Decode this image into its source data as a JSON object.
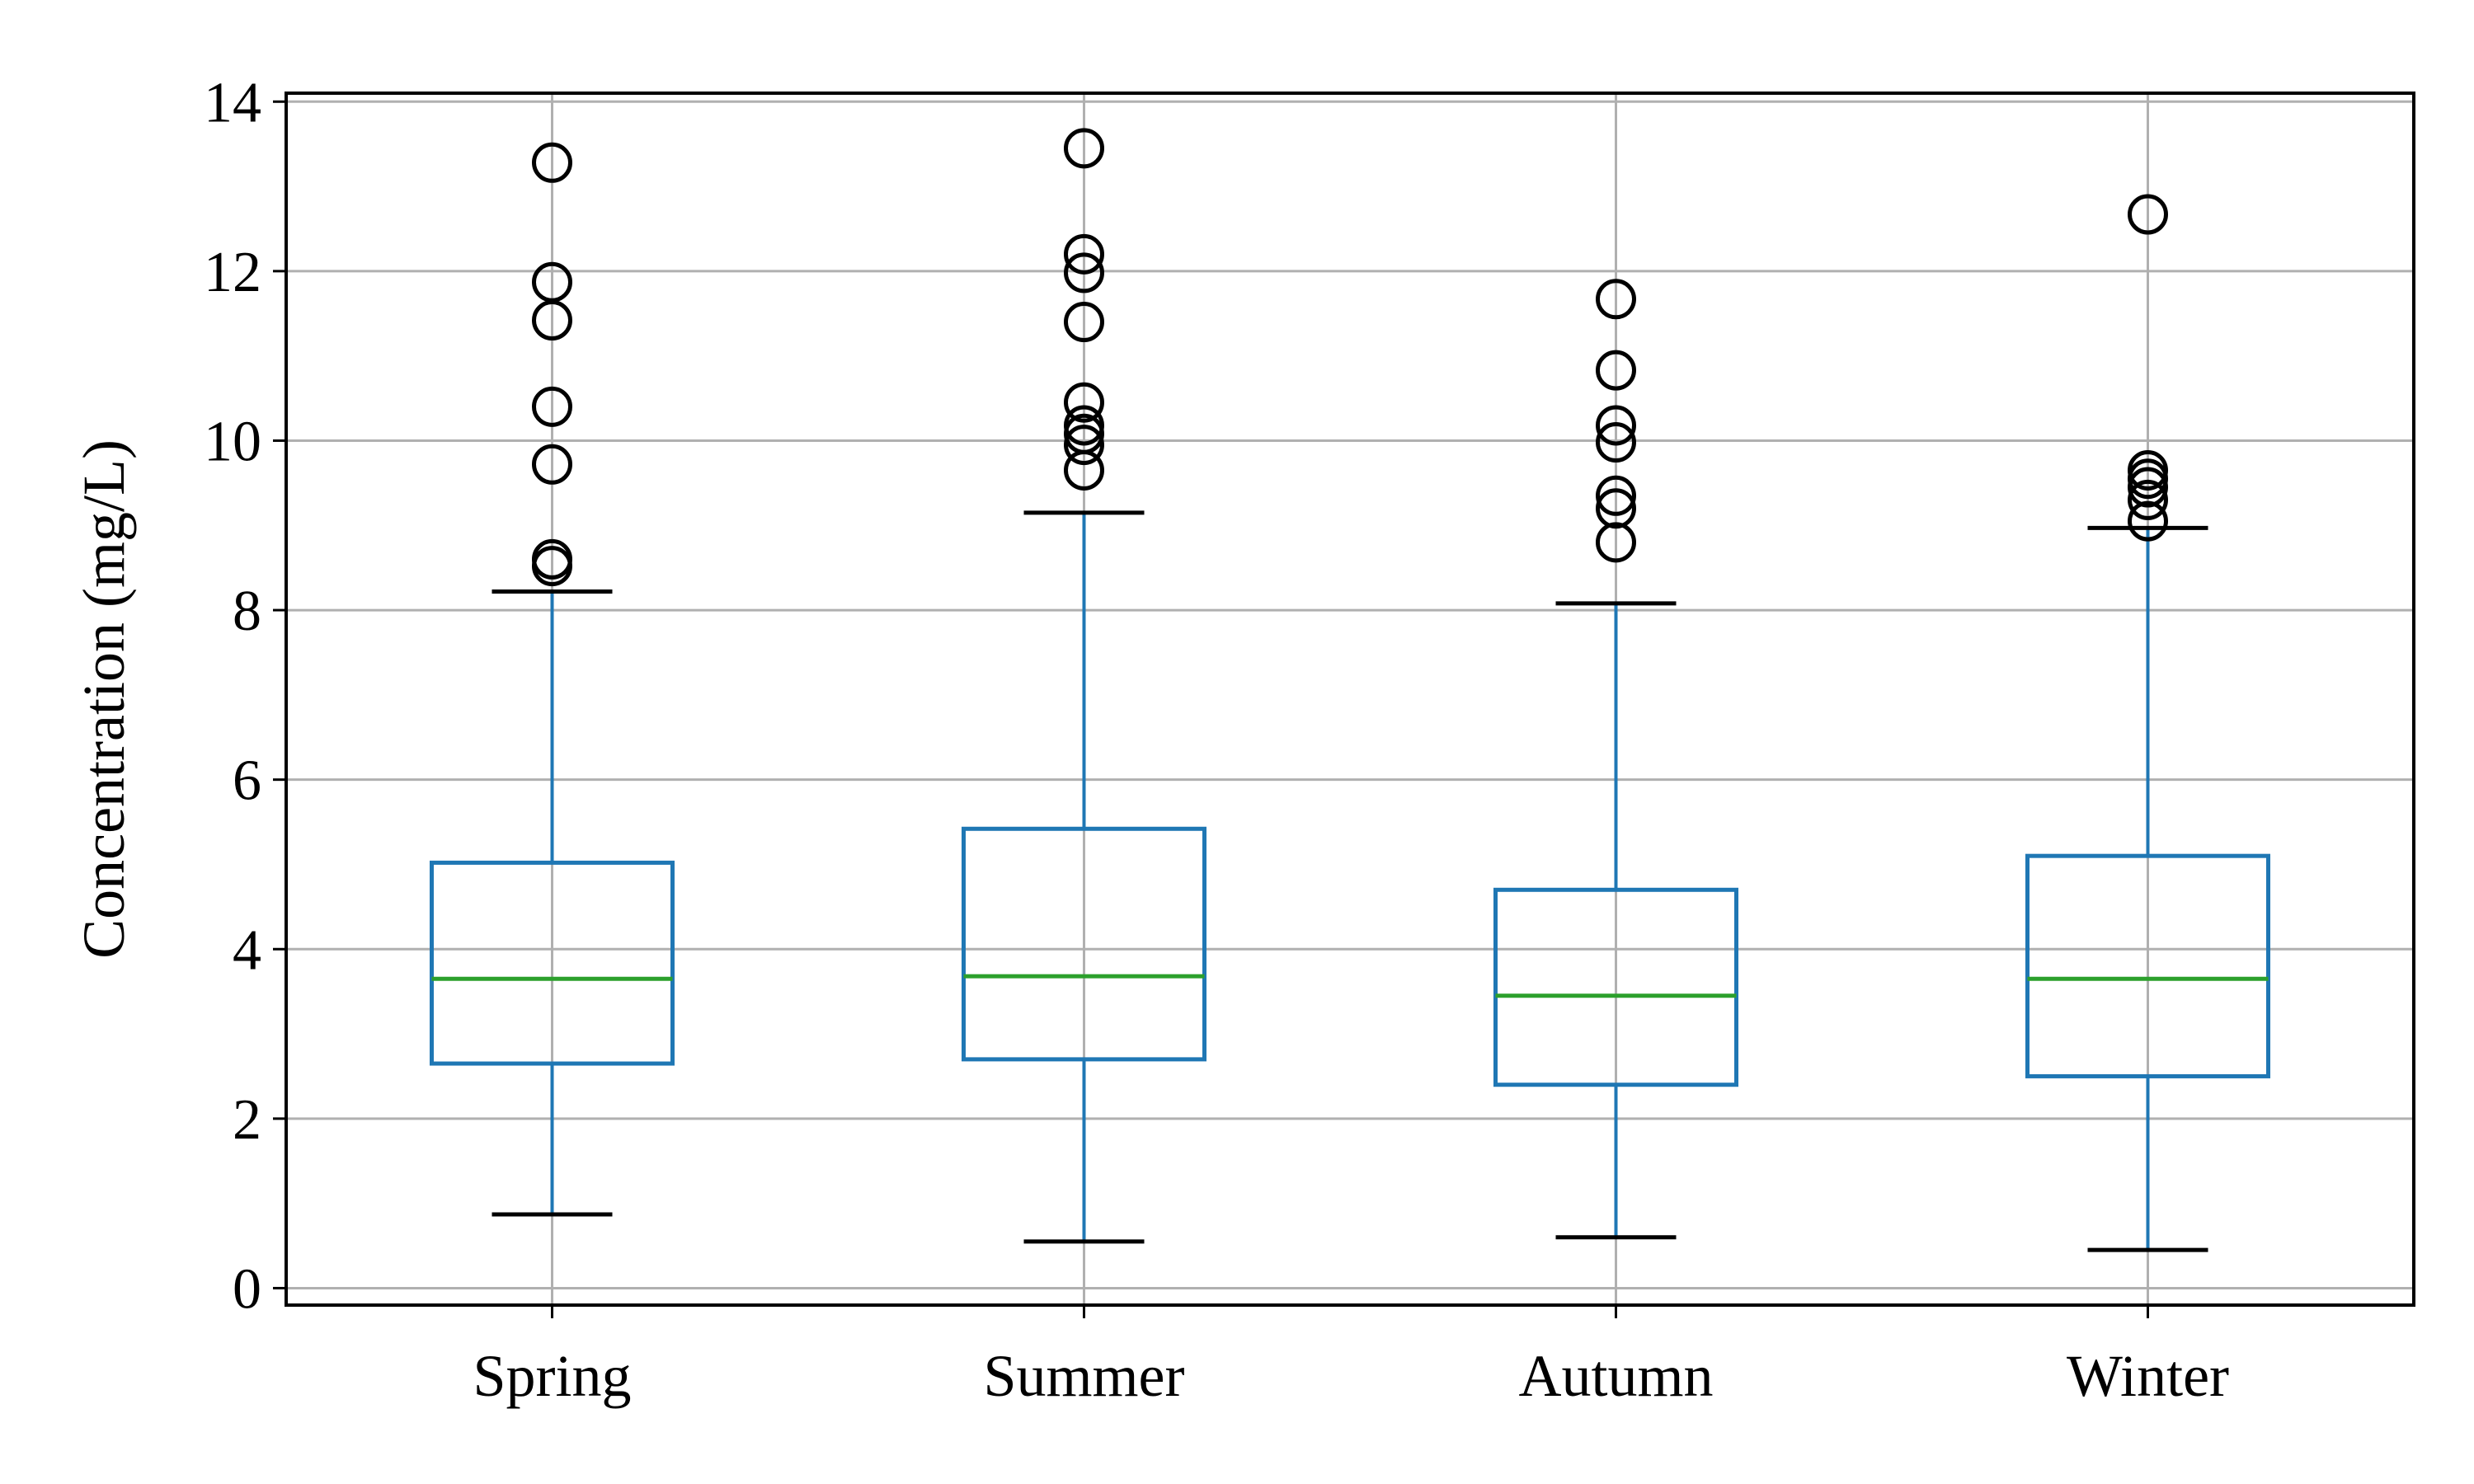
{
  "chart_data": {
    "type": "box",
    "title": "",
    "xlabel": "",
    "ylabel": "Concentration (mg/L)",
    "ylim": [
      -0.2,
      14.1
    ],
    "yticks": [
      0,
      2,
      4,
      6,
      8,
      10,
      12,
      14
    ],
    "grid": true,
    "categories": [
      "Spring",
      "Summer",
      "Autumn",
      "Winter"
    ],
    "boxes": [
      {
        "category": "Spring",
        "whisker_low": 0.87,
        "q1": 2.65,
        "median": 3.65,
        "q3": 5.02,
        "whisker_high": 8.22,
        "outliers": [
          8.52,
          8.6,
          9.72,
          10.4,
          11.42,
          11.87,
          13.28
        ]
      },
      {
        "category": "Summer",
        "whisker_low": 0.55,
        "q1": 2.7,
        "median": 3.68,
        "q3": 5.42,
        "whisker_high": 9.15,
        "outliers": [
          9.65,
          9.95,
          10.08,
          10.18,
          10.45,
          11.4,
          11.98,
          12.2,
          13.45
        ]
      },
      {
        "category": "Autumn",
        "whisker_low": 0.6,
        "q1": 2.4,
        "median": 3.45,
        "q3": 4.7,
        "whisker_high": 8.08,
        "outliers": [
          8.8,
          9.2,
          9.35,
          9.98,
          10.18,
          10.83,
          11.67
        ]
      },
      {
        "category": "Winter",
        "whisker_low": 0.45,
        "q1": 2.5,
        "median": 3.65,
        "q3": 5.1,
        "whisker_high": 8.97,
        "outliers": [
          9.05,
          9.3,
          9.45,
          9.55,
          9.65,
          12.67
        ]
      }
    ],
    "colors": {
      "box": "#1f77b4",
      "median": "#2ca02c",
      "caps": "#000000",
      "outliers": "#000000",
      "grid": "#b0b0b0",
      "axes": "#000000"
    }
  }
}
